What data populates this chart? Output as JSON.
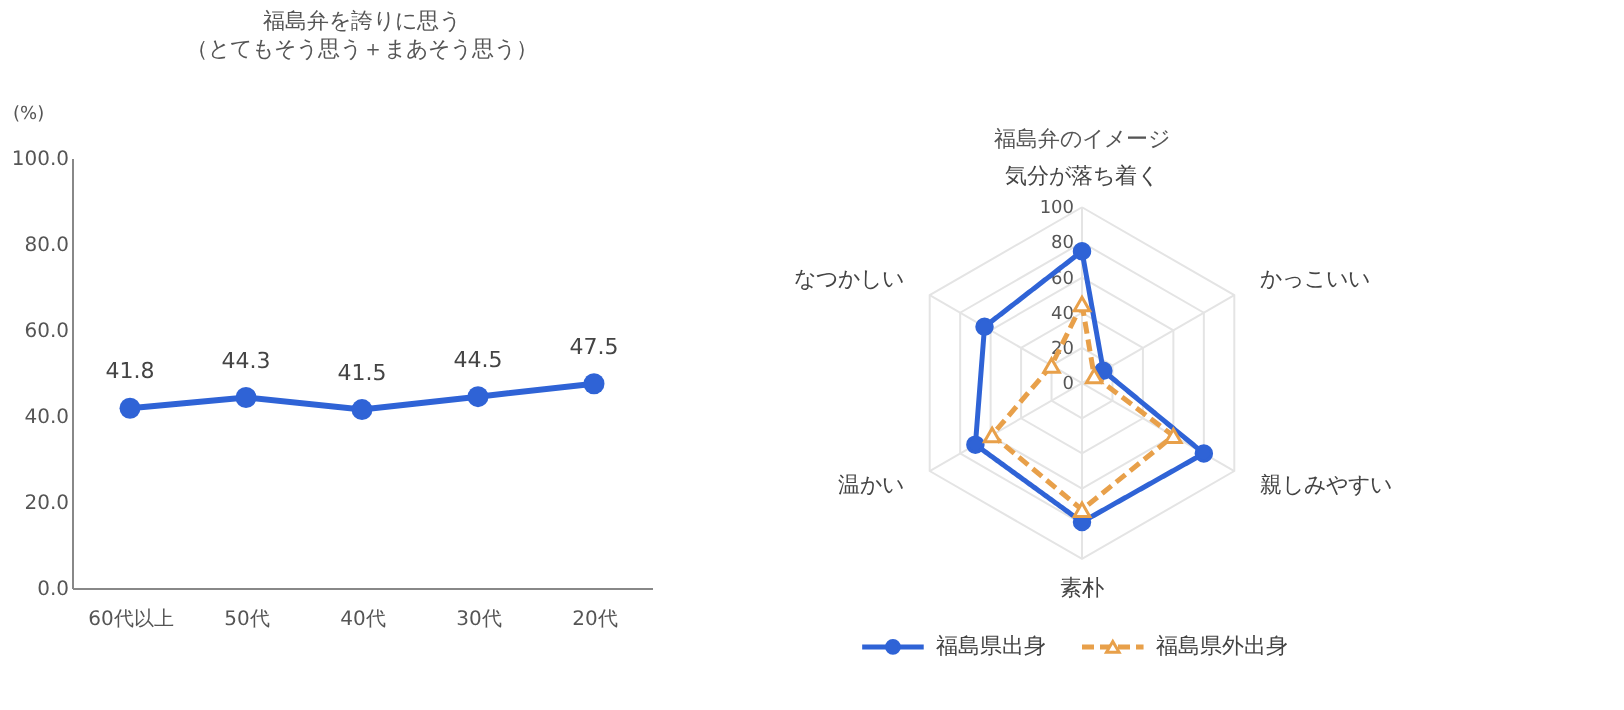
{
  "chart_data": [
    {
      "type": "line",
      "title": "福島弁を誇りに思う",
      "subtitle": "（とてもそう思う＋まあそう思う）",
      "ylabel": "(%)",
      "categories": [
        "60代以上",
        "50代",
        "40代",
        "30代",
        "20代"
      ],
      "series": [
        {
          "color": "#2f63d6",
          "values": [
            41.8,
            44.3,
            41.5,
            44.5,
            47.5
          ]
        }
      ],
      "ylim": [
        0,
        100
      ],
      "yticks": [
        {
          "value": 0,
          "label": "0.0"
        },
        {
          "value": 20,
          "label": "20.0"
        },
        {
          "value": 40,
          "label": "40.0"
        },
        {
          "value": 60,
          "label": "60.0"
        },
        {
          "value": 80,
          "label": "80.0"
        },
        {
          "value": 100,
          "label": "100.0"
        }
      ],
      "data_labels": true,
      "marker": "circle",
      "grid": false,
      "legend": false
    },
    {
      "type": "radar",
      "title": "福島弁のイメージ",
      "categories": [
        "気分が落ち着く",
        "かっこいい",
        "親しみやすい",
        "素朴",
        "温かい",
        "なつかしい"
      ],
      "series": [
        {
          "name": "福島県出身",
          "color": "#2f63d6",
          "values": [
            75,
            14,
            80,
            79,
            70,
            64
          ],
          "marker": "circle",
          "line_style": "solid"
        },
        {
          "name": "福島県外出身",
          "color": "#e8a04a",
          "values": [
            45,
            8,
            60,
            72,
            59,
            20
          ],
          "marker": "triangle",
          "line_style": "dashed"
        }
      ],
      "ylim": [
        0,
        100
      ],
      "yticks": [
        0,
        20,
        40,
        60,
        80,
        100
      ],
      "grid": true,
      "legend": "bottom"
    }
  ]
}
